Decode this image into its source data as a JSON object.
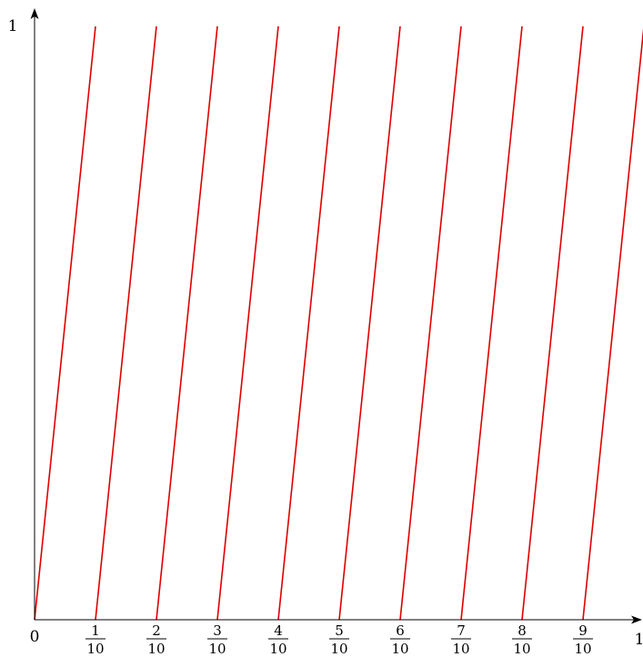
{
  "chart_data": {
    "type": "line",
    "title": "",
    "xlabel": "",
    "ylabel": "",
    "xlim": [
      0,
      1
    ],
    "ylim": [
      0,
      1
    ],
    "grid": false,
    "legend": "none",
    "line_color": "#e00000",
    "axis_color": "#000000",
    "x_axis_labels": {
      "origin": "0",
      "end": "1",
      "fraction_ticks": [
        {
          "value": 0.1,
          "numerator": "1",
          "denominator": "10"
        },
        {
          "value": 0.2,
          "numerator": "2",
          "denominator": "10"
        },
        {
          "value": 0.3,
          "numerator": "3",
          "denominator": "10"
        },
        {
          "value": 0.4,
          "numerator": "4",
          "denominator": "10"
        },
        {
          "value": 0.5,
          "numerator": "5",
          "denominator": "10"
        },
        {
          "value": 0.6,
          "numerator": "6",
          "denominator": "10"
        },
        {
          "value": 0.7,
          "numerator": "7",
          "denominator": "10"
        },
        {
          "value": 0.8,
          "numerator": "8",
          "denominator": "10"
        },
        {
          "value": 0.9,
          "numerator": "9",
          "denominator": "10"
        }
      ]
    },
    "y_axis_labels": {
      "end": "1"
    },
    "series": [
      {
        "x": [
          0.0,
          0.1
        ],
        "y": [
          0,
          1
        ]
      },
      {
        "x": [
          0.1,
          0.2
        ],
        "y": [
          0,
          1
        ]
      },
      {
        "x": [
          0.2,
          0.3
        ],
        "y": [
          0,
          1
        ]
      },
      {
        "x": [
          0.3,
          0.4
        ],
        "y": [
          0,
          1
        ]
      },
      {
        "x": [
          0.4,
          0.5
        ],
        "y": [
          0,
          1
        ]
      },
      {
        "x": [
          0.5,
          0.6
        ],
        "y": [
          0,
          1
        ]
      },
      {
        "x": [
          0.6,
          0.7
        ],
        "y": [
          0,
          1
        ]
      },
      {
        "x": [
          0.7,
          0.8
        ],
        "y": [
          0,
          1
        ]
      },
      {
        "x": [
          0.8,
          0.9
        ],
        "y": [
          0,
          1
        ]
      },
      {
        "x": [
          0.9,
          1.0
        ],
        "y": [
          0,
          1
        ]
      }
    ]
  }
}
